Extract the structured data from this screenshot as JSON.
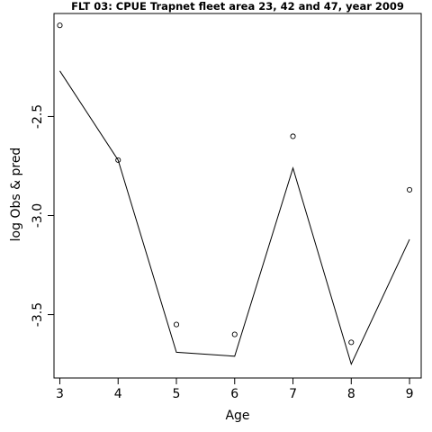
{
  "chart_data": {
    "type": "line",
    "title": "FLT 03: CPUE Trapnet fleet area 23, 42 and 47, year 2009",
    "xlabel": "Age",
    "ylabel": "log Obs & pred",
    "x": [
      3,
      4,
      5,
      6,
      7,
      8,
      9
    ],
    "series": [
      {
        "kind": "points",
        "values": [
          -2.04,
          -2.72,
          -3.55,
          -3.6,
          -2.6,
          -3.64,
          -2.87
        ]
      },
      {
        "kind": "line",
        "values": [
          -2.27,
          -2.72,
          -3.69,
          -3.71,
          -2.76,
          -3.75,
          -3.12
        ]
      }
    ],
    "xlim": [
      2.9,
      9.2
    ],
    "ylim": [
      -3.82,
      -1.98
    ],
    "xticks": [
      3,
      4,
      5,
      6,
      7,
      8,
      9
    ],
    "yticks": [
      -2.5,
      -3.0,
      -3.5
    ],
    "ytick_labels": [
      "-2.5",
      "-3.0",
      "-3.5"
    ],
    "grid": false,
    "colors": {
      "line": "#000000",
      "points": "#000000",
      "background": "#ffffff"
    }
  }
}
